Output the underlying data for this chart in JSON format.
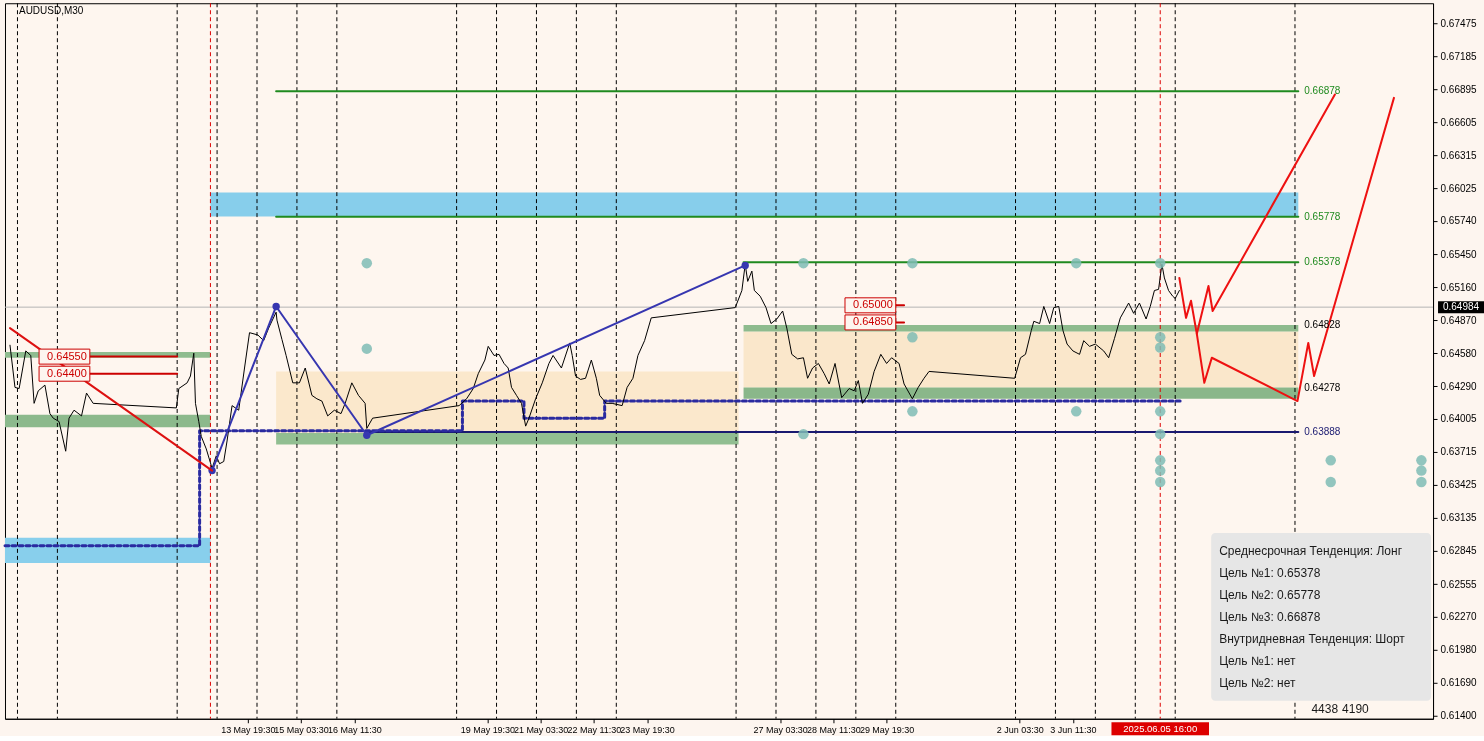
{
  "chart_data": {
    "type": "line",
    "title": "AUDUSD,M30",
    "xlim": [
      "2025-05-07T17:30",
      "2025-06-12T12:00"
    ],
    "ylim": [
      0.61373,
      0.6765
    ],
    "xticks": [
      {
        "value": "2025-05-13T19:30",
        "label": "13 May 19:30"
      },
      {
        "value": "2025-05-15T03:30",
        "label": "15 May 03:30"
      },
      {
        "value": "2025-05-16T11:30",
        "label": "16 May 11:30"
      },
      {
        "value": "2025-05-19T19:30",
        "label": "19 May 19:30"
      },
      {
        "value": "2025-05-21T03:30",
        "label": "21 May 03:30"
      },
      {
        "value": "2025-05-22T11:30",
        "label": "22 May 11:30"
      },
      {
        "value": "2025-05-23T19:30",
        "label": "23 May 19:30"
      },
      {
        "value": "2025-05-27T03:30",
        "label": "27 May 03:30"
      },
      {
        "value": "2025-05-28T11:30",
        "label": "28 May 11:30"
      },
      {
        "value": "2025-05-29T19:30",
        "label": "29 May 19:30"
      },
      {
        "value": "2025-06-02T03:30",
        "label": "2 Jun 03:30"
      },
      {
        "value": "2025-06-03T11:30",
        "label": "3 Jun 11:30"
      }
    ],
    "yticks": [
      0.67475,
      0.67185,
      0.66895,
      0.66605,
      0.66315,
      0.66025,
      {
        "value": 0.6574,
        "label": "0.65740"
      },
      {
        "value": 0.6545,
        "label": "0.65450"
      },
      {
        "value": 0.6516,
        "label": "0.65160"
      },
      {
        "value": 0.6487,
        "label": "0.64870"
      },
      {
        "value": 0.6458,
        "label": "0.64580"
      },
      {
        "value": 0.6429,
        "label": "0.64290"
      },
      0.64005,
      0.63715,
      0.63425,
      0.63135,
      0.62845,
      0.62555,
      {
        "value": 0.6227,
        "label": "0.62270"
      },
      {
        "value": 0.6198,
        "label": "0.61980"
      },
      {
        "value": 0.6169,
        "label": "0.61690"
      },
      {
        "value": 0.614,
        "label": "0.61400"
      }
    ],
    "series": [
      {
        "color": "#87ceeb",
        "x": [
          "2025-05-12T21:00",
          "2025-06-09T03:00"
        ],
        "values": [
          null,
          null
        ],
        "upper": [
          0.6599,
          0.6599
        ],
        "lower": [
          0.6578,
          0.6578
        ]
      },
      {
        "color": "#88cfec",
        "x": [
          "2025-05-07T17:30",
          "2025-05-12T21:00"
        ],
        "values": [
          null,
          null
        ],
        "upper": [
          0.6296,
          0.6296
        ],
        "lower": [
          0.6274,
          0.6274
        ]
      },
      {
        "color": "#8fbc8f",
        "x": [
          "2025-05-07T17:30",
          "2025-05-12T21:00"
        ],
        "values": [
          null,
          null
        ],
        "upper": [
          0.6459,
          0.6459
        ],
        "lower": [
          0.6454,
          0.6454
        ]
      },
      {
        "color": "#8cb98c",
        "x": [
          "2025-05-07T17:30",
          "2025-05-12T21:00"
        ],
        "values": [
          null,
          null
        ],
        "upper": [
          0.6404,
          0.6404
        ],
        "lower": [
          0.6393,
          0.6393
        ]
      },
      {
        "color": "#fbe8cc",
        "x": [
          "2025-05-14T12:30",
          "2025-05-26T02:30"
        ],
        "values": [
          null,
          null
        ],
        "upper": [
          0.6442,
          0.6442
        ],
        "lower": [
          0.6388,
          0.6388
        ]
      },
      {
        "color": "#91be91",
        "x": [
          "2025-05-14T12:30",
          "2025-05-26T02:30"
        ],
        "values": [
          null,
          null
        ],
        "upper": [
          0.6388,
          0.6388
        ],
        "lower": [
          0.6378,
          0.6378
        ]
      },
      {
        "color": "#fae7cb",
        "x": [
          "2025-05-26T05:30",
          "2025-06-09T03:00"
        ],
        "values": [
          null,
          null
        ],
        "upper": [
          0.6477,
          0.6477
        ],
        "lower": [
          0.64278,
          0.64278
        ]
      },
      {
        "color": "#8ebb8e",
        "x": [
          "2025-05-26T05:30",
          "2025-06-09T03:00"
        ],
        "values": [
          null,
          null
        ],
        "upper": [
          0.64828,
          0.64828
        ],
        "lower": [
          0.6477,
          0.6477
        ]
      },
      {
        "color": "#8ab78a",
        "x": [
          "2025-05-26T05:30",
          "2025-06-09T03:00"
        ],
        "values": [
          null,
          null
        ],
        "upper": [
          0.64278,
          0.64278
        ],
        "lower": [
          0.6418,
          0.6418
        ]
      },
      {
        "color": "#1f8a1f",
        "x": [
          "2025-05-14T12:30",
          "2025-06-09T03:00"
        ],
        "values": [
          0.66878,
          0.66878
        ],
        "value_labels": [
          null,
          "0.66878"
        ]
      },
      {
        "color": "#1f8a1f",
        "x": [
          "2025-05-14T12:30",
          "2025-06-09T03:00"
        ],
        "values": [
          0.65778,
          0.65778
        ],
        "value_labels": [
          null,
          "0.65778"
        ]
      },
      {
        "color": "#1f8a1f",
        "x": [
          "2025-05-26T05:30",
          "2025-06-09T03:00"
        ],
        "values": [
          0.65378,
          0.65378
        ],
        "value_labels": [
          null,
          "0.65378"
        ]
      },
      {
        "color": "#191970",
        "x": [
          "2025-05-16T19:00",
          "2025-06-09T03:00"
        ],
        "values": [
          0.63888,
          0.63888
        ],
        "value_labels": [
          null,
          "0.63888"
        ]
      },
      {
        "color": "#cc0000",
        "x": [
          "2025-05-09T20:30",
          "2025-05-12T01:00"
        ],
        "values": [
          0.6455,
          0.6455
        ],
        "value_labels": [
          "0.64550",
          null
        ]
      },
      {
        "color": "#cc0000",
        "x": [
          "2025-05-09T20:30",
          "2025-05-12T01:00"
        ],
        "values": [
          0.644,
          0.644
        ],
        "value_labels": [
          "0.64400",
          null
        ]
      },
      {
        "color": "#cc0000",
        "x": [
          "2025-05-30T01:00",
          "2025-05-30T06:00"
        ],
        "values": [
          0.65,
          0.65
        ],
        "value_labels": [
          "0.65000",
          null
        ]
      },
      {
        "color": "#cc0000",
        "x": [
          "2025-05-30T01:00",
          "2025-05-30T06:00"
        ],
        "values": [
          0.6485,
          0.6485
        ],
        "value_labels": [
          "0.64850",
          null
        ]
      },
      {
        "color": "#2a2aa0",
        "line_style": "dashed",
        "x": [
          "2025-05-07T17:30",
          "2025-05-12T14:30",
          "2025-05-12T14:30",
          "2025-05-19T04:30",
          "2025-05-19T04:30",
          "2025-05-20T17:30",
          "2025-05-20T17:30",
          "2025-05-22T18:00",
          "2025-05-22T18:00",
          "2025-06-06T05:30"
        ],
        "values": [
          0.6289,
          0.6289,
          0.639,
          0.639,
          0.6416,
          0.6416,
          0.6401,
          0.6401,
          0.6416,
          0.6416
        ]
      },
      {
        "color": "#000000",
        "x": [
          "2025-05-07T20:30",
          "2025-05-07T23:30",
          "2025-05-08T02:00",
          "2025-05-08T06:00",
          "2025-05-08T09:00",
          "2025-05-08T11:00",
          "2025-05-08T13:30",
          "2025-05-08T17:30",
          "2025-05-08T20:30",
          "2025-05-08T22:30",
          "2025-05-09T02:00",
          "2025-05-09T06:00",
          "2025-05-09T08:00",
          "2025-05-09T11:00",
          "2025-05-09T15:30",
          "2025-05-09T18:30",
          "2025-05-09T22:30",
          "2025-05-12T00:30",
          "2025-05-12T02:00",
          "2025-05-12T07:00",
          "2025-05-12T09:00",
          "2025-05-12T11:00",
          "2025-05-12T12:00",
          "2025-05-12T14:00",
          "2025-05-12T15:30",
          "2025-05-12T18:30",
          "2025-05-12T22:00",
          "2025-05-13T00:30",
          "2025-05-13T02:30",
          "2025-05-13T05:00",
          "2025-05-13T07:00",
          "2025-05-13T10:00",
          "2025-05-13T14:00",
          "2025-05-13T17:30",
          "2025-05-13T20:30",
          "2025-05-14T01:30",
          "2025-05-14T05:00",
          "2025-05-14T08:00",
          "2025-05-14T12:30",
          "2025-05-14T13:00",
          "2025-05-14T16:00",
          "2025-05-14T18:30",
          "2025-05-14T22:30",
          "2025-05-15T02:30",
          "2025-05-15T06:00",
          "2025-05-15T10:00",
          "2025-05-15T13:00",
          "2025-05-15T16:00",
          "2025-05-15T19:30",
          "2025-05-15T23:30",
          "2025-05-16T03:30",
          "2025-05-16T06:00",
          "2025-05-16T10:00",
          "2025-05-16T14:00",
          "2025-05-16T18:00",
          "2025-05-16T19:00",
          "2025-05-16T22:30",
          "2025-05-19T02:30",
          "2025-05-19T07:00",
          "2025-05-19T11:00",
          "2025-05-19T14:00",
          "2025-05-19T18:00",
          "2025-05-19T20:00",
          "2025-05-19T23:30",
          "2025-05-20T02:30",
          "2025-05-20T05:30",
          "2025-05-20T08:00",
          "2025-05-20T10:00",
          "2025-05-20T13:00",
          "2025-05-20T16:00",
          "2025-05-20T18:30",
          "2025-05-20T20:30",
          "2025-05-21T00:30",
          "2025-05-21T04:30",
          "2025-05-21T08:30",
          "2025-05-21T11:00",
          "2025-05-21T16:00",
          "2025-05-21T21:00",
          "2025-05-21T22:30",
          "2025-05-22T00:30",
          "2025-05-22T03:30",
          "2025-05-22T06:30",
          "2025-05-22T10:00",
          "2025-05-22T13:00",
          "2025-05-22T15:00",
          "2025-05-22T19:00",
          "2025-05-22T22:30",
          "2025-05-23T04:30",
          "2025-05-23T07:30",
          "2025-05-23T11:00",
          "2025-05-23T14:00",
          "2025-05-23T18:00",
          "2025-05-23T22:00",
          "2025-05-26T00:30",
          "2025-05-26T04:30",
          "2025-05-26T06:30",
          "2025-05-26T08:00",
          "2025-05-26T10:30",
          "2025-05-26T12:00",
          "2025-05-26T15:30",
          "2025-05-26T19:00",
          "2025-05-26T22:00",
          "2025-05-27T01:30",
          "2025-05-27T05:00",
          "2025-05-27T07:30",
          "2025-05-27T10:30",
          "2025-05-27T14:00",
          "2025-05-27T17:30",
          "2025-05-27T20:00",
          "2025-05-27T23:00",
          "2025-05-28T02:30",
          "2025-05-28T06:00",
          "2025-05-28T09:00",
          "2025-05-28T12:30",
          "2025-05-28T16:30",
          "2025-05-28T21:00",
          "2025-05-29T00:00",
          "2025-05-29T02:30",
          "2025-05-29T05:00",
          "2025-05-29T08:30",
          "2025-05-29T12:00",
          "2025-05-29T16:00",
          "2025-05-29T19:30",
          "2025-05-29T22:30",
          "2025-05-30T03:00",
          "2025-05-30T06:00",
          "2025-05-30T11:00",
          "2025-05-30T14:30",
          "2025-05-30T18:00",
          "2025-05-30T21:00",
          "2025-06-02T00:30",
          "2025-06-02T04:00",
          "2025-06-02T07:00",
          "2025-06-02T10:30",
          "2025-06-02T12:00",
          "2025-06-02T15:30",
          "2025-06-02T18:00",
          "2025-06-02T21:30",
          "2025-06-03T00:00",
          "2025-06-03T03:00",
          "2025-06-03T05:30",
          "2025-06-03T08:00",
          "2025-06-03T11:30",
          "2025-06-03T15:30",
          "2025-06-03T18:00",
          "2025-06-03T21:30",
          "2025-06-04T01:00",
          "2025-06-04T06:00",
          "2025-06-04T09:00",
          "2025-06-04T12:30",
          "2025-06-04T16:00",
          "2025-06-04T21:00",
          "2025-06-05T00:00",
          "2025-06-05T03:30",
          "2025-06-05T07:30",
          "2025-06-05T10:00",
          "2025-06-05T12:30",
          "2025-06-05T15:00",
          "2025-06-05T17:00",
          "2025-06-05T18:30",
          "2025-06-05T21:00",
          "2025-06-05T23:30",
          "2025-06-06T01:00",
          "2025-06-06T03:30"
        ],
        "values": [
          0.6465,
          0.6428,
          0.6427,
          0.646,
          0.6456,
          0.6414,
          0.6425,
          0.643,
          0.6405,
          0.6401,
          0.6398,
          0.6372,
          0.6401,
          0.6408,
          0.6403,
          0.6423,
          0.6414,
          0.641,
          0.6427,
          0.6432,
          0.6438,
          0.6458,
          0.6414,
          0.6398,
          0.6385,
          0.6374,
          0.6357,
          0.6368,
          0.6361,
          0.6363,
          0.6381,
          0.6412,
          0.6408,
          0.6445,
          0.6476,
          0.6474,
          0.6469,
          0.648,
          0.6494,
          0.6487,
          0.647,
          0.6456,
          0.6432,
          0.6432,
          0.6445,
          0.6421,
          0.6418,
          0.6416,
          0.6403,
          0.6408,
          0.6405,
          0.6414,
          0.6432,
          0.6421,
          0.6414,
          0.6392,
          0.6401,
          0.6412,
          0.6418,
          0.6427,
          0.644,
          0.6452,
          0.6464,
          0.6456,
          0.6457,
          0.6449,
          0.6445,
          0.6428,
          0.6421,
          0.6414,
          0.6394,
          0.6401,
          0.6418,
          0.6432,
          0.6449,
          0.6456,
          0.6445,
          0.6467,
          0.6456,
          0.6438,
          0.6435,
          0.6436,
          0.6452,
          0.6436,
          0.6421,
          0.6414,
          0.6414,
          0.6412,
          0.6428,
          0.6436,
          0.6456,
          0.6469,
          0.6489,
          0.6498,
          0.6513,
          0.6536,
          0.6521,
          0.653,
          0.6513,
          0.6508,
          0.6498,
          0.6484,
          0.6488,
          0.6495,
          0.648,
          0.6457,
          0.6453,
          0.6454,
          0.6436,
          0.6445,
          0.6449,
          0.644,
          0.6431,
          0.6449,
          0.6419,
          0.6427,
          0.6425,
          0.6434,
          0.6414,
          0.6422,
          0.6442,
          0.6457,
          0.6449,
          0.6454,
          0.6449,
          0.6431,
          0.6418,
          0.6428,
          0.6436,
          0.6442,
          0.6436,
          0.6454,
          0.6457,
          0.6478,
          0.6486,
          0.6484,
          0.6499,
          0.6484,
          0.6498,
          0.6499,
          0.6478,
          0.6466,
          0.646,
          0.6457,
          0.6469,
          0.6464,
          0.6466,
          0.646,
          0.6454,
          0.6471,
          0.6489,
          0.6502,
          0.6493,
          0.6502,
          0.6488,
          0.6499,
          0.6513,
          0.6514,
          0.6536,
          0.6524,
          0.6513,
          0.6508,
          0.6506,
          0.6513
        ]
      },
      {
        "color": "#3636b0",
        "marker": "circle",
        "x": [
          "2025-05-12T22:00",
          "2025-05-14T12:30",
          "2025-05-16T19:00",
          "2025-05-26T06:30"
        ],
        "values": [
          0.6355,
          0.6499,
          0.6386,
          0.6535
        ]
      },
      {
        "color": "#dd1111",
        "x": [
          "2025-05-07T20:30",
          "2025-05-12T22:00"
        ],
        "values": [
          0.648,
          0.6355
        ]
      },
      {
        "color": "#ee1111",
        "x": [
          "2025-06-06T03:30",
          "2025-06-06T07:30",
          "2025-06-06T10:30",
          "2025-06-06T14:00",
          "2025-06-06T21:00",
          "2025-06-06T23:30",
          "2025-06-10T01:00"
        ],
        "values": [
          0.6524,
          0.6489,
          0.6504,
          0.6475,
          0.6517,
          0.6495,
          0.6685
        ]
      },
      {
        "color": "#ee1111",
        "x": [
          "2025-06-06T14:00",
          "2025-06-06T18:30",
          "2025-06-06T23:00",
          "2025-06-09T02:30",
          "2025-06-09T09:00",
          "2025-06-09T12:30",
          "2025-06-11T12:30"
        ],
        "values": [
          0.6475,
          0.6432,
          0.6454,
          0.6416,
          0.6467,
          0.6438,
          0.6682
        ]
      },
      {
        "type": "scatter",
        "color": "#7fbcb5",
        "marker": "circle",
        "x": [
          "2025-05-16T19:00",
          "2025-05-16T19:00",
          "2025-05-27T17:30",
          "2025-05-30T11:00",
          "2025-06-03T13:30",
          "2025-06-05T16:00",
          "2025-05-30T11:00",
          "2025-06-05T16:00",
          "2025-06-05T16:00",
          "2025-05-30T11:00",
          "2025-06-03T13:30",
          "2025-06-05T16:00",
          "2025-05-27T17:30",
          "2025-06-05T16:00",
          "2025-06-05T16:00",
          "2025-06-05T16:00",
          "2025-06-05T16:00",
          "2025-06-09T22:30",
          "2025-06-09T22:30",
          "2025-06-12T05:00",
          "2025-06-12T05:00",
          "2025-06-12T05:00"
        ],
        "values": [
          0.6537,
          0.6462,
          0.6537,
          0.6537,
          0.6537,
          0.6537,
          0.6472,
          0.6472,
          0.6463,
          0.6407,
          0.6407,
          0.6407,
          0.6387,
          0.6387,
          0.6364,
          0.6355,
          0.6345,
          0.6364,
          0.6345,
          0.6364,
          0.6355,
          0.6345
        ]
      }
    ],
    "ref_lines": [
      {
        "axis": "x",
        "value": "2025-05-08T01:00",
        "color": "#000000",
        "line_style": "dashed"
      },
      {
        "axis": "x",
        "value": "2025-05-09T01:00",
        "color": "#000000",
        "line_style": "dashed"
      },
      {
        "axis": "x",
        "value": "2025-05-12T01:00",
        "color": "#000000",
        "line_style": "dashed"
      },
      {
        "axis": "x",
        "value": "2025-05-13T01:00",
        "color": "#000000",
        "line_style": "dashed"
      },
      {
        "axis": "x",
        "value": "2025-05-14T01:00",
        "color": "#000000",
        "line_style": "dashed"
      },
      {
        "axis": "x",
        "value": "2025-05-15T01:00",
        "color": "#000000",
        "line_style": "dashed"
      },
      {
        "axis": "x",
        "value": "2025-05-16T01:00",
        "color": "#000000",
        "line_style": "dashed"
      },
      {
        "axis": "x",
        "value": "2025-05-19T01:00",
        "color": "#000000",
        "line_style": "dashed"
      },
      {
        "axis": "x",
        "value": "2025-05-20T01:00",
        "color": "#000000",
        "line_style": "dashed"
      },
      {
        "axis": "x",
        "value": "2025-05-21T01:00",
        "color": "#000000",
        "line_style": "dashed"
      },
      {
        "axis": "x",
        "value": "2025-05-22T01:00",
        "color": "#000000",
        "line_style": "dashed"
      },
      {
        "axis": "x",
        "value": "2025-05-23T01:00",
        "color": "#000000",
        "line_style": "dashed"
      },
      {
        "axis": "x",
        "value": "2025-05-26T01:00",
        "color": "#000000",
        "line_style": "dashed"
      },
      {
        "axis": "x",
        "value": "2025-05-27T01:00",
        "color": "#000000",
        "line_style": "dashed"
      },
      {
        "axis": "x",
        "value": "2025-05-28T01:00",
        "color": "#000000",
        "line_style": "dashed"
      },
      {
        "axis": "x",
        "value": "2025-05-29T01:00",
        "color": "#000000",
        "line_style": "dashed"
      },
      {
        "axis": "x",
        "value": "2025-05-30T01:00",
        "color": "#000000",
        "line_style": "dashed"
      },
      {
        "axis": "x",
        "value": "2025-06-02T01:00",
        "color": "#000000",
        "line_style": "dashed"
      },
      {
        "axis": "x",
        "value": "2025-06-03T01:00",
        "color": "#000000",
        "line_style": "dashed"
      },
      {
        "axis": "x",
        "value": "2025-06-04T01:00",
        "color": "#000000",
        "line_style": "dashed"
      },
      {
        "axis": "x",
        "value": "2025-06-05T01:00",
        "color": "#000000",
        "line_style": "dashed"
      },
      {
        "axis": "x",
        "value": "2025-06-06T01:00",
        "color": "#000000",
        "line_style": "dashed"
      },
      {
        "axis": "x",
        "value": "2025-06-09T01:00",
        "color": "#000000",
        "line_style": "dashed"
      },
      {
        "axis": "x",
        "value": "2025-05-12T21:00",
        "color": "#dd0000",
        "line_style": "dashed"
      },
      {
        "axis": "x",
        "value": "2025-06-05T16:00",
        "color": "#dd0000",
        "line_style": "dashed",
        "label": "2025.06.05 16:00"
      },
      {
        "axis": "y",
        "value": 0.64984,
        "color": "#b4b4b4",
        "label": "0.64984"
      }
    ],
    "annotations": [
      {
        "text": "0.64828",
        "x": "2025-06-09T03:00",
        "y": 0.64828
      },
      {
        "text": "0.64278",
        "x": "2025-06-09T03:00",
        "y": 0.64278
      },
      "Среднесрочная Тенденция: Лонг",
      "Цель №1: 0.65378",
      "Цель №2: 0.65778",
      "Цель №3: 0.66878",
      "Внутридневная Тенденция: Шорт",
      "Цель №1: нет",
      "Цель №2: нет",
      "4438",
      "4190"
    ]
  }
}
